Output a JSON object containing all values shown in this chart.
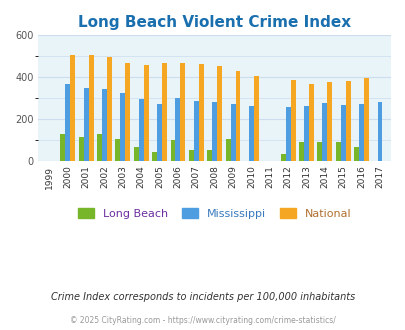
{
  "title": "Long Beach Violent Crime Index",
  "title_color": "#1a6faf",
  "years": [
    1999,
    2000,
    2001,
    2002,
    2003,
    2004,
    2005,
    2006,
    2007,
    2008,
    2009,
    2010,
    2011,
    2012,
    2013,
    2014,
    2015,
    2016,
    2017
  ],
  "long_beach": [
    0,
    130,
    115,
    128,
    103,
    68,
    40,
    97,
    50,
    52,
    103,
    0,
    0,
    32,
    92,
    88,
    92,
    68,
    0
  ],
  "mississippi": [
    0,
    365,
    350,
    345,
    322,
    295,
    272,
    298,
    287,
    280,
    272,
    262,
    0,
    255,
    260,
    278,
    268,
    270,
    280
  ],
  "national": [
    0,
    505,
    505,
    495,
    470,
    457,
    468,
    468,
    463,
    452,
    427,
    405,
    0,
    388,
    367,
    375,
    383,
    398,
    0
  ],
  "lb_color": "#77b52a",
  "ms_color": "#4d9de0",
  "nat_color": "#f5a623",
  "bg_color": "#e8f4f8",
  "ylim": [
    0,
    600
  ],
  "yticks": [
    0,
    200,
    400,
    600
  ],
  "grid_color": "#ccddee",
  "subtitle": "Crime Index corresponds to incidents per 100,000 inhabitants",
  "subtitle_color": "#333333",
  "copyright": "© 2025 CityRating.com - https://www.cityrating.com/crime-statistics/",
  "copyright_color": "#999999",
  "legend_labels": [
    "Long Beach",
    "Mississippi",
    "National"
  ],
  "legend_label_colors": [
    "#6b2fa0",
    "#3a7abf",
    "#b07030"
  ],
  "bar_width": 0.27
}
